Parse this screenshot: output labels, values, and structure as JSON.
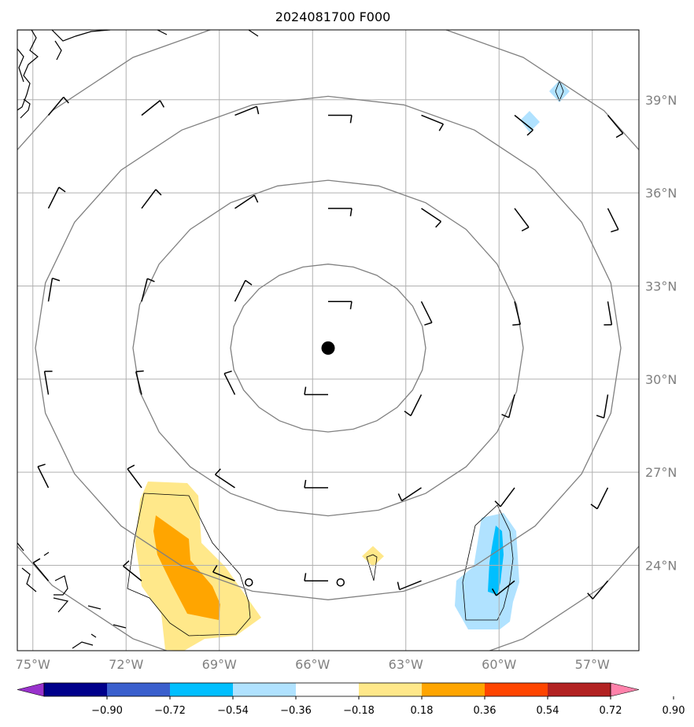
{
  "title": "2024081700 F000",
  "map": {
    "lon_range": [
      -75.5,
      -55.5
    ],
    "lat_range": [
      21.25,
      41.25
    ],
    "lon_labels": [
      "75°W",
      "72°W",
      "69°W",
      "66°W",
      "63°W",
      "60°W",
      "57°W"
    ],
    "lon_values": [
      -75,
      -72,
      -69,
      -66,
      -63,
      -60,
      -57
    ],
    "lat_labels": [
      "24°N",
      "27°N",
      "30°N",
      "33°N",
      "36°N",
      "39°N"
    ],
    "lat_values": [
      24,
      27,
      30,
      33,
      36,
      39
    ],
    "center": {
      "lon": -65.5,
      "lat": 31.0
    },
    "range_ring_count": 4,
    "ring_color": "#808080",
    "grid_color": "#b0b0b0",
    "small_circles": [
      {
        "lon": -68.05,
        "lat": 23.45
      },
      {
        "lon": -65.1,
        "lat": 23.45
      }
    ],
    "wind_barb_grid": {
      "lons": [
        -74.5,
        -71.5,
        -68.5,
        -65.5,
        -62.5,
        -59.5,
        -56.5
      ],
      "lats": [
        38.5,
        35.5,
        32.5,
        29.5,
        26.5,
        23.5
      ]
    }
  },
  "colorbar": {
    "ticks": [
      "−0.90",
      "−0.72",
      "−0.54",
      "−0.36",
      "−0.18",
      "0.18",
      "0.36",
      "0.54",
      "0.72",
      "0.90"
    ],
    "colors": [
      "#9932cc",
      "#00008b",
      "#3a5fcd",
      "#00bfff",
      "#b0e2ff",
      "#ffffff",
      "#ffe88a",
      "#ffa500",
      "#ff4500",
      "#b22222",
      "#ff82ab"
    ]
  }
}
